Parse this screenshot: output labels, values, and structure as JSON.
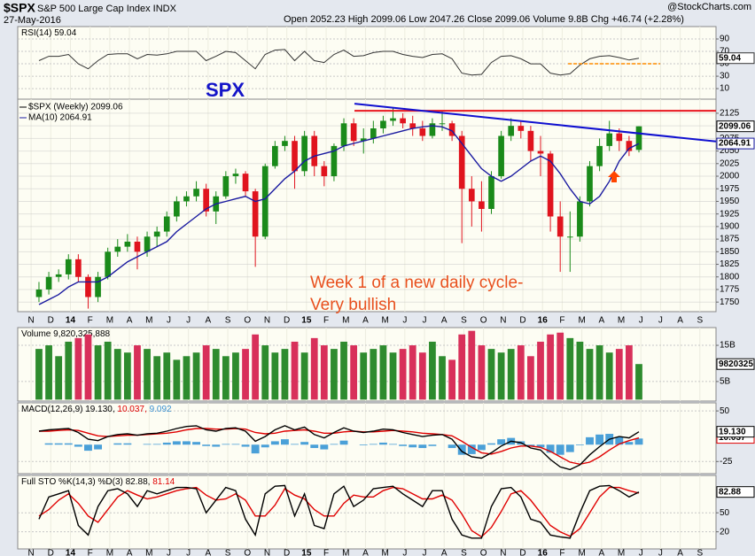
{
  "header": {
    "symbol": "$SPX",
    "name": "S&P 500 Large Cap Index  INDX",
    "date": "27-May-2016",
    "quote": "Open 2052.23  High 2099.06  Low 2047.26  Close 2099.06  Volume 9.8B  Chg +46.74 (+2.28%)",
    "source": "@StockCharts.com"
  },
  "chart_data": [
    {
      "type": "line",
      "title_parts": [
        "RSI(14) 59.04"
      ],
      "title_colors": [
        "#000000"
      ],
      "ylim": [
        -7,
        110
      ],
      "yticks": [
        90,
        70,
        50,
        30,
        10
      ],
      "grid": true,
      "series": [
        {
          "color": "#333333",
          "box": true,
          "values": [
            55,
            62,
            62,
            65,
            50,
            42,
            55,
            65,
            66,
            66,
            58,
            65,
            64,
            66,
            70,
            70,
            70,
            55,
            62,
            70,
            68,
            55,
            42,
            65,
            72,
            73,
            55,
            70,
            55,
            52,
            65,
            72,
            62,
            63,
            68,
            70,
            70,
            65,
            62,
            60,
            65,
            66,
            58,
            35,
            32,
            33,
            52,
            62,
            63,
            58,
            50,
            50,
            35,
            32,
            34,
            48,
            58,
            62,
            63,
            60,
            56,
            59.04
          ]
        }
      ],
      "lines": [
        {
          "color": "#ff8c00",
          "dash": true,
          "x": [
            27.3,
            31.98
          ],
          "y": [
            50,
            50
          ]
        }
      ]
    },
    {
      "type": "candlestick",
      "name": "$SPX (Weekly) 2099.06",
      "up_color": "#1a8a1a",
      "down_color": "#e0141e",
      "xlim": [
        -0.68,
        34.82
      ],
      "xticks": [
        {
          "value": 0,
          "label": "N"
        },
        {
          "value": 1,
          "label": "D"
        },
        {
          "value": 2,
          "label": "14"
        },
        {
          "value": 3,
          "label": "F"
        },
        {
          "value": 4,
          "label": "M"
        },
        {
          "value": 5,
          "label": "A"
        },
        {
          "value": 6,
          "label": "M"
        },
        {
          "value": 7,
          "label": "J"
        },
        {
          "value": 8,
          "label": "J"
        },
        {
          "value": 9,
          "label": "A"
        },
        {
          "value": 10,
          "label": "S"
        },
        {
          "value": 11,
          "label": "O"
        },
        {
          "value": 12,
          "label": "N"
        },
        {
          "value": 13,
          "label": "D"
        },
        {
          "value": 14,
          "label": "15"
        },
        {
          "value": 15,
          "label": "F"
        },
        {
          "value": 16,
          "label": "M"
        },
        {
          "value": 17,
          "label": "A"
        },
        {
          "value": 18,
          "label": "M"
        },
        {
          "value": 19,
          "label": "J"
        },
        {
          "value": 20,
          "label": "J"
        },
        {
          "value": 21,
          "label": "A"
        },
        {
          "value": 22,
          "label": "S"
        },
        {
          "value": 23,
          "label": "O"
        },
        {
          "value": 24,
          "label": "N"
        },
        {
          "value": 25,
          "label": "D"
        },
        {
          "value": 26,
          "label": "16"
        },
        {
          "value": 27,
          "label": "F"
        },
        {
          "value": 28,
          "label": "M"
        },
        {
          "value": 29,
          "label": "A"
        },
        {
          "value": 30,
          "label": "M"
        },
        {
          "value": 31,
          "label": "J"
        },
        {
          "value": 32,
          "label": "J"
        },
        {
          "value": 33,
          "label": "A"
        },
        {
          "value": 34,
          "label": "S"
        }
      ],
      "ylim": [
        1731,
        2153
      ],
      "yticks": [
        1750,
        1775,
        1800,
        1825,
        1850,
        1875,
        1900,
        1925,
        1950,
        1975,
        2000,
        2025,
        2050,
        2075,
        2100,
        2125
      ],
      "grid": true,
      "x": [
        0.4,
        0.9,
        1.4,
        1.9,
        2.4,
        2.9,
        3.4,
        3.9,
        4.4,
        4.9,
        5.4,
        5.9,
        6.4,
        6.9,
        7.4,
        7.9,
        8.4,
        8.9,
        9.4,
        9.9,
        10.4,
        10.9,
        11.4,
        11.9,
        12.4,
        12.9,
        13.4,
        13.9,
        14.4,
        14.9,
        15.4,
        15.9,
        16.4,
        16.9,
        17.4,
        17.9,
        18.4,
        18.9,
        19.4,
        19.9,
        20.4,
        20.9,
        21.4,
        21.9,
        22.4,
        22.9,
        23.4,
        23.9,
        24.4,
        24.9,
        25.4,
        25.9,
        26.4,
        26.9,
        27.4,
        27.9,
        28.4,
        28.9,
        29.4,
        29.9,
        30.4,
        30.9
      ],
      "open": [
        1760,
        1775,
        1800,
        1805,
        1835,
        1800,
        1760,
        1800,
        1850,
        1860,
        1870,
        1850,
        1880,
        1890,
        1920,
        1950,
        1960,
        1975,
        1930,
        1960,
        2000,
        2005,
        1970,
        1880,
        2020,
        2060,
        2070,
        2010,
        2080,
        2020,
        2000,
        2060,
        2105,
        2070,
        2075,
        2095,
        2110,
        2115,
        2105,
        2095,
        2080,
        2105,
        2105,
        2080,
        1975,
        1950,
        1935,
        2000,
        2080,
        2100,
        2090,
        2050,
        2045,
        1920,
        1880,
        1880,
        1950,
        2020,
        2060,
        2085,
        2070,
        2052.23
      ],
      "high": [
        1790,
        1810,
        1815,
        1845,
        1845,
        1805,
        1810,
        1858,
        1875,
        1885,
        1880,
        1890,
        1900,
        1930,
        1960,
        1970,
        1990,
        1985,
        1970,
        2010,
        2015,
        2010,
        1975,
        2025,
        2070,
        2080,
        2080,
        2090,
        2090,
        2030,
        2065,
        2115,
        2115,
        2095,
        2110,
        2120,
        2135,
        2125,
        2120,
        2110,
        2115,
        2130,
        2110,
        2090,
        2000,
        1990,
        2010,
        2090,
        2115,
        2110,
        2100,
        2080,
        2050,
        1950,
        1930,
        1960,
        2030,
        2075,
        2110,
        2095,
        2080,
        2099.06
      ],
      "low": [
        1750,
        1765,
        1790,
        1795,
        1790,
        1737,
        1750,
        1795,
        1840,
        1850,
        1815,
        1840,
        1860,
        1880,
        1910,
        1940,
        1950,
        1920,
        1905,
        1955,
        1985,
        1960,
        1820,
        1875,
        2015,
        2050,
        1975,
        2000,
        2000,
        1980,
        1990,
        2050,
        2060,
        2045,
        2065,
        2085,
        2100,
        2095,
        2080,
        2070,
        2075,
        2090,
        2070,
        1867,
        1900,
        1890,
        1925,
        1995,
        2070,
        2075,
        2030,
        2000,
        1890,
        1810,
        1810,
        1870,
        1940,
        2010,
        2050,
        2050,
        2040,
        2047.26
      ],
      "close": [
        1775,
        1800,
        1805,
        1835,
        1800,
        1760,
        1800,
        1850,
        1860,
        1870,
        1850,
        1880,
        1890,
        1920,
        1950,
        1960,
        1975,
        1930,
        1960,
        2000,
        2005,
        1970,
        1880,
        2020,
        2060,
        2070,
        2010,
        2080,
        2020,
        2000,
        2060,
        2105,
        2070,
        2075,
        2095,
        2110,
        2115,
        2105,
        2095,
        2080,
        2105,
        2105,
        2080,
        1975,
        1950,
        1935,
        2000,
        2080,
        2100,
        2090,
        2050,
        2045,
        1920,
        1880,
        1880,
        1950,
        2020,
        2060,
        2085,
        2070,
        2050,
        2099.06
      ],
      "series": [
        {
          "name": "MA(10) 2064.91",
          "color": "#1a1aa0",
          "box": true,
          "values": [
            1745,
            1755,
            1765,
            1780,
            1790,
            1790,
            1790,
            1800,
            1815,
            1830,
            1840,
            1850,
            1860,
            1870,
            1890,
            1905,
            1920,
            1935,
            1945,
            1950,
            1955,
            1960,
            1950,
            1955,
            1975,
            1995,
            2010,
            2030,
            2040,
            2045,
            2050,
            2060,
            2065,
            2070,
            2075,
            2080,
            2085,
            2090,
            2095,
            2098,
            2100,
            2098,
            2090,
            2065,
            2040,
            2015,
            2000,
            1990,
            2000,
            2015,
            2030,
            2040,
            2030,
            2005,
            1975,
            1950,
            1945,
            1960,
            1990,
            2030,
            2055,
            2064.91
          ]
        }
      ],
      "lines": [
        {
          "color": "#e8141e",
          "x": [
            16.44,
            34.82
          ],
          "y": [
            2130,
            2130
          ]
        },
        {
          "color": "#1010d0",
          "x": [
            16.44,
            34.82
          ],
          "y": [
            2144,
            2069
          ]
        }
      ],
      "annotations": [
        "SPX",
        "Week 1 of a new daily cycle-",
        "Very bullish"
      ]
    },
    {
      "type": "bar",
      "title_parts": [
        "Volume 9,820,325,888"
      ],
      "title_colors": [
        "#000000"
      ],
      "up_color": "#2e8b2e",
      "down_color": "#d8305a",
      "ylim": [
        -0.4,
        19.9
      ],
      "yticks": [
        {
          "value": 15,
          "label": "15B"
        },
        {
          "value": 5,
          "label": "5B"
        }
      ],
      "grid": true,
      "last_label": "9820325",
      "values": [
        14,
        15,
        12,
        16,
        17,
        18,
        15,
        16,
        14,
        13,
        15,
        14,
        12,
        13,
        11,
        12,
        13,
        15,
        14,
        12,
        13,
        14,
        18,
        15,
        13,
        14,
        16,
        13,
        17,
        15,
        14,
        16,
        15,
        13,
        14,
        15,
        13,
        14,
        15,
        13,
        16,
        12,
        11,
        18,
        19,
        15,
        14,
        13,
        14,
        15,
        12,
        16,
        18,
        18.5,
        17,
        16,
        14,
        15,
        13,
        14,
        15,
        9.82
      ]
    },
    {
      "type": "line",
      "title_parts": [
        "MACD(12,26,9) 19.130,",
        "10.037,",
        "9.092"
      ],
      "title_colors": [
        "#000000",
        "#e00000",
        "#3a90d0"
      ],
      "ylim": [
        -43,
        62
      ],
      "yticks": [
        50,
        -25
      ],
      "grid": true,
      "series": [
        {
          "color": "#4aa0d8",
          "style": "histogram",
          "values": [
            0,
            2,
            2,
            2,
            -3,
            -9,
            -7,
            0,
            2,
            2,
            0,
            1,
            1,
            3,
            5,
            5,
            4,
            -2,
            -3,
            1,
            1,
            -3,
            -13,
            -4,
            5,
            8,
            1,
            4,
            -5,
            -7,
            1,
            6,
            0,
            -1,
            1,
            3,
            1,
            -2,
            -4,
            -5,
            -2,
            0,
            -5,
            -15,
            -14,
            -8,
            2,
            8,
            10,
            5,
            -3,
            -4,
            -12,
            -15,
            -11,
            -1,
            11,
            15,
            16,
            11,
            4,
            9.092
          ]
        },
        {
          "color": "#e00000",
          "box": true,
          "last_label": "10.037",
          "values": [
            20,
            20,
            21,
            22,
            21,
            17,
            13,
            12,
            13,
            14,
            14,
            15,
            16,
            17,
            19,
            22,
            24,
            24,
            23,
            23,
            24,
            23,
            18,
            16,
            17,
            20,
            21,
            22,
            20,
            17,
            17,
            19,
            20,
            19,
            19,
            20,
            21,
            20,
            19,
            17,
            16,
            15,
            13,
            5,
            -4,
            -12,
            -14,
            -10,
            -5,
            -2,
            -2,
            -4,
            -10,
            -18,
            -26,
            -29,
            -26,
            -18,
            -8,
            1,
            6,
            10.037
          ]
        },
        {
          "color": "#000000",
          "box": true,
          "last_label": "19.130",
          "values": [
            20,
            22,
            23,
            24,
            18,
            8,
            6,
            12,
            15,
            16,
            14,
            16,
            17,
            20,
            24,
            27,
            28,
            22,
            20,
            24,
            25,
            20,
            5,
            12,
            22,
            28,
            22,
            26,
            15,
            10,
            18,
            25,
            20,
            18,
            20,
            23,
            22,
            18,
            15,
            12,
            14,
            15,
            8,
            -10,
            -18,
            -20,
            -12,
            -2,
            5,
            3,
            -5,
            -8,
            -22,
            -33,
            -37,
            -30,
            -15,
            -3,
            8,
            12,
            10,
            19.13
          ]
        }
      ]
    },
    {
      "type": "line",
      "title_parts": [
        "Full STO %K(14,3) %D(3) 82.88,",
        "81.14"
      ],
      "title_colors": [
        "#000000",
        "#e00000"
      ],
      "ylim": [
        -7,
        109
      ],
      "yticks": [
        50,
        20
      ],
      "grid": true,
      "series": [
        {
          "color": "#e00000",
          "values": [
            45,
            55,
            70,
            80,
            65,
            45,
            35,
            55,
            75,
            85,
            78,
            72,
            75,
            80,
            85,
            88,
            90,
            78,
            70,
            72,
            80,
            70,
            45,
            45,
            62,
            88,
            78,
            72,
            55,
            45,
            45,
            65,
            78,
            75,
            75,
            85,
            90,
            88,
            80,
            72,
            72,
            78,
            70,
            48,
            22,
            12,
            27,
            52,
            80,
            85,
            70,
            50,
            30,
            20,
            13,
            25,
            50,
            75,
            90,
            90,
            85,
            81.14
          ]
        },
        {
          "color": "#000000",
          "box": true,
          "values": [
            40,
            75,
            80,
            85,
            30,
            15,
            60,
            85,
            88,
            80,
            60,
            85,
            80,
            85,
            90,
            90,
            88,
            50,
            70,
            90,
            85,
            40,
            15,
            80,
            92,
            93,
            45,
            80,
            30,
            25,
            80,
            92,
            60,
            70,
            88,
            90,
            92,
            80,
            70,
            60,
            85,
            85,
            40,
            15,
            10,
            10,
            60,
            88,
            90,
            75,
            40,
            35,
            15,
            12,
            10,
            50,
            85,
            92,
            93,
            85,
            75,
            82.88
          ]
        }
      ]
    }
  ]
}
